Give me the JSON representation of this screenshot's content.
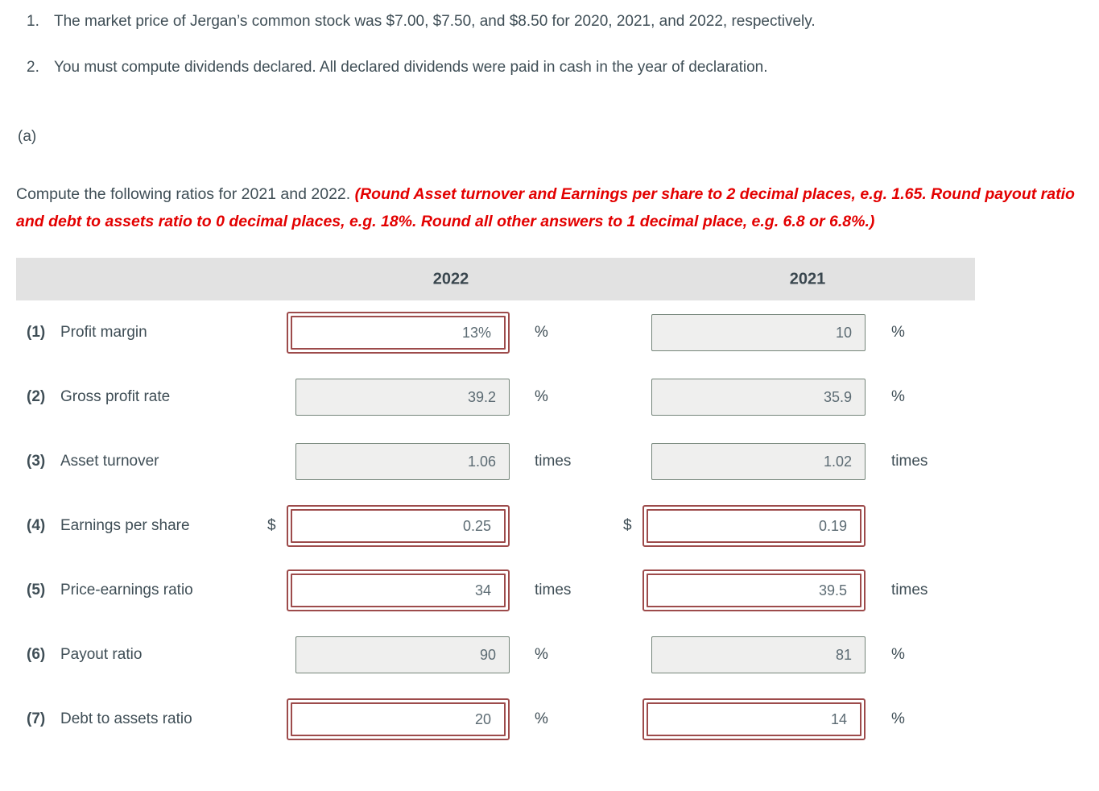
{
  "notes": [
    {
      "number": "1.",
      "text": "The market price of Jergan’s common stock was $7.00, $7.50, and $8.50 for 2020, 2021, and 2022, respectively."
    },
    {
      "number": "2.",
      "text": "You must compute dividends declared. All declared dividends were paid in cash in the year of declaration."
    }
  ],
  "section_label": "(a)",
  "instruction": {
    "normal": "Compute the following ratios for 2021 and 2022. ",
    "emphasis": "(Round Asset turnover and Earnings per share to 2 decimal places, e.g. 1.65. Round payout ratio and debt to assets ratio to 0 decimal places, e.g. 18%. Round all other answers to 1 decimal place, e.g. 6.8 or 6.8%.)"
  },
  "table": {
    "columns": [
      "2022",
      "2021"
    ],
    "rows": [
      {
        "num": "(1)",
        "label": "Profit margin",
        "cells": [
          {
            "prefix": "",
            "value": "13%",
            "suffix": "%",
            "status": "incorrect"
          },
          {
            "prefix": "",
            "value": "10",
            "suffix": "%",
            "status": "neutral"
          }
        ]
      },
      {
        "num": "(2)",
        "label": "Gross profit rate",
        "cells": [
          {
            "prefix": "",
            "value": "39.2",
            "suffix": "%",
            "status": "neutral"
          },
          {
            "prefix": "",
            "value": "35.9",
            "suffix": "%",
            "status": "neutral"
          }
        ]
      },
      {
        "num": "(3)",
        "label": "Asset turnover",
        "cells": [
          {
            "prefix": "",
            "value": "1.06",
            "suffix": "times",
            "status": "neutral"
          },
          {
            "prefix": "",
            "value": "1.02",
            "suffix": "times",
            "status": "neutral"
          }
        ]
      },
      {
        "num": "(4)",
        "label": "Earnings per share",
        "cells": [
          {
            "prefix": "$",
            "value": "0.25",
            "suffix": "",
            "status": "incorrect"
          },
          {
            "prefix": "$",
            "value": "0.19",
            "suffix": "",
            "status": "incorrect"
          }
        ]
      },
      {
        "num": "(5)",
        "label": "Price-earnings ratio",
        "cells": [
          {
            "prefix": "",
            "value": "34",
            "suffix": "times",
            "status": "incorrect"
          },
          {
            "prefix": "",
            "value": "39.5",
            "suffix": "times",
            "status": "incorrect"
          }
        ]
      },
      {
        "num": "(6)",
        "label": "Payout ratio",
        "cells": [
          {
            "prefix": "",
            "value": "90",
            "suffix": "%",
            "status": "neutral"
          },
          {
            "prefix": "",
            "value": "81",
            "suffix": "%",
            "status": "neutral"
          }
        ]
      },
      {
        "num": "(7)",
        "label": "Debt to assets ratio",
        "cells": [
          {
            "prefix": "",
            "value": "20",
            "suffix": "%",
            "status": "incorrect"
          },
          {
            "prefix": "",
            "value": "14",
            "suffix": "%",
            "status": "incorrect"
          }
        ]
      }
    ]
  },
  "colors": {
    "body_text": "#3f4e56",
    "red_instruction_text": "#e30000",
    "incorrect_border": "#9d4b4b",
    "neutral_box_bg": "#efefee",
    "neutral_box_border": "#75857a",
    "header_band_bg": "#e2e2e2",
    "value_text": "#5c6b73"
  }
}
